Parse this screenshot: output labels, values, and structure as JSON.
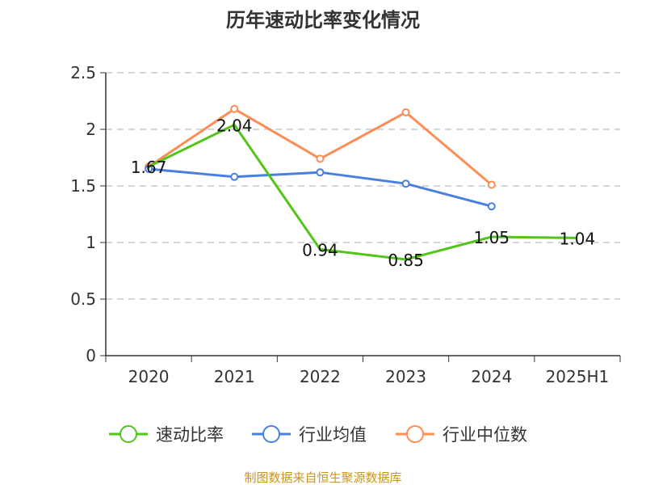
{
  "chart_data": {
    "type": "line",
    "title": "历年速动比率变化情况",
    "categories": [
      "2020",
      "2021",
      "2022",
      "2023",
      "2024",
      "2025H1"
    ],
    "ylim": [
      0,
      2.5
    ],
    "yticks": [
      "0",
      "0.5",
      "1",
      "1.5",
      "2",
      "2.5"
    ],
    "grid": true,
    "legend_placement": "bottom",
    "series": [
      {
        "name": "速动比率",
        "color": "#52c41a",
        "values": [
          1.67,
          2.04,
          0.94,
          0.85,
          1.05,
          1.04
        ],
        "labels": [
          "1.67",
          "2.04",
          "0.94",
          "0.85",
          "1.05",
          "1.04"
        ]
      },
      {
        "name": "行业均值",
        "color": "#4a7fe0",
        "values": [
          1.65,
          1.58,
          1.62,
          1.52,
          1.32,
          null
        ]
      },
      {
        "name": "行业中位数",
        "color": "#ff8c55",
        "values": [
          1.67,
          2.18,
          1.74,
          2.15,
          1.51,
          null
        ]
      }
    ]
  },
  "footer": {
    "source": "制图数据来自恒生聚源数据库",
    "source_color": "#c8961e"
  }
}
